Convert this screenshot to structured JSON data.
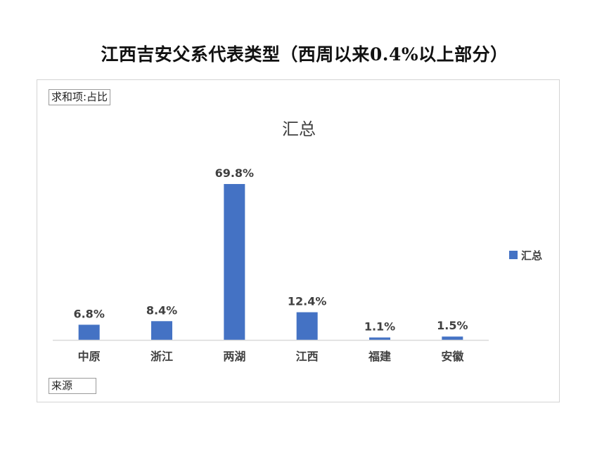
{
  "page": {
    "title": "江西吉安父系代表类型（西周以来0.4%以上部分）"
  },
  "pivot": {
    "value_field_label": "求和项:占比",
    "source_field_label": "来源"
  },
  "chart_data": {
    "type": "bar",
    "title": "汇总",
    "categories": [
      "中原",
      "浙江",
      "两湖",
      "江西",
      "福建",
      "安徽"
    ],
    "series": [
      {
        "name": "汇总",
        "values": [
          6.8,
          8.4,
          69.8,
          12.4,
          1.1,
          1.5
        ],
        "labels": [
          "6.8%",
          "8.4%",
          "69.8%",
          "12.4%",
          "1.1%",
          "1.5%"
        ],
        "color": "#4472C4"
      }
    ],
    "xlabel": "",
    "ylabel": "",
    "ylim": [
      0,
      70
    ],
    "grid": false,
    "legend": "right",
    "axis_color": "#d9d9d9"
  }
}
